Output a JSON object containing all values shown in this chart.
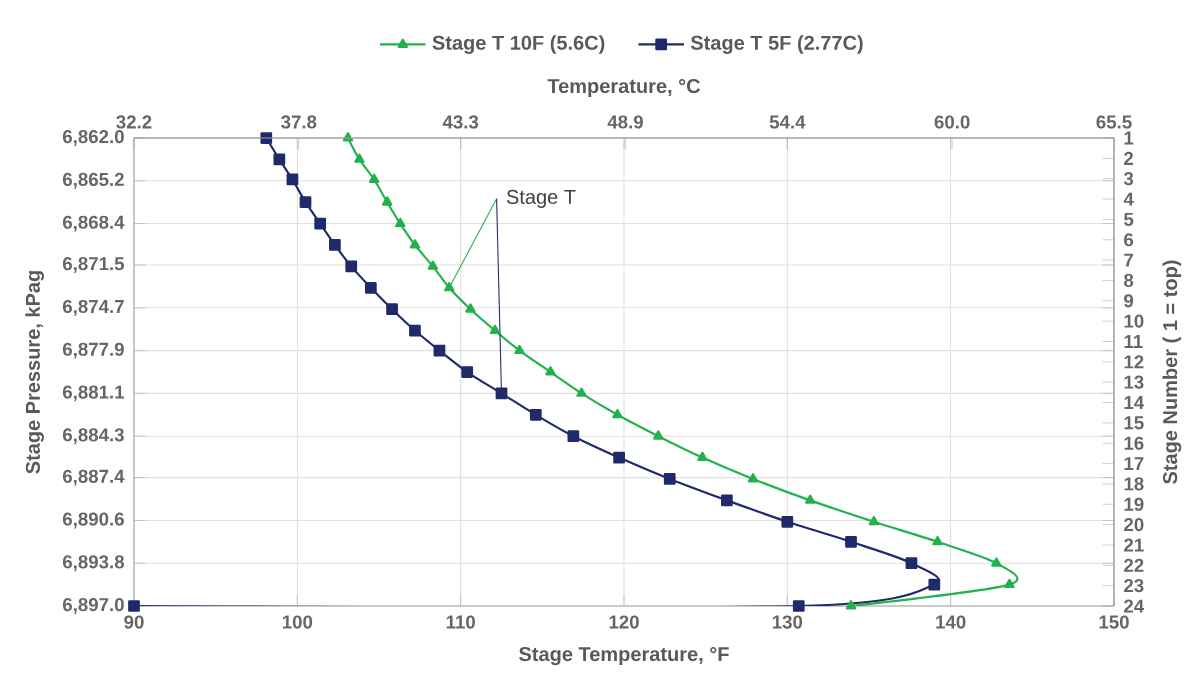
{
  "chart_data": {
    "type": "line",
    "xlabel": "Stage Temperature, °F",
    "ylabel": "Stage Pressure, kPag",
    "x2label": "Temperature, °C",
    "y2label": "Stage Number ( 1 = top)",
    "xlim": [
      90,
      150
    ],
    "xticks": [
      90,
      100,
      110,
      120,
      130,
      140,
      150
    ],
    "ylim": [
      6897.0,
      6862.0
    ],
    "yticks": [
      {
        "value": 6862.0,
        "label": "6,862.0"
      },
      {
        "value": 6865.2,
        "label": "6,865.2"
      },
      {
        "value": 6868.4,
        "label": "6,868.4"
      },
      {
        "value": 6871.5,
        "label": "6,871.5"
      },
      {
        "value": 6874.7,
        "label": "6,874.7"
      },
      {
        "value": 6877.9,
        "label": "6,877.9"
      },
      {
        "value": 6881.1,
        "label": "6,881.1"
      },
      {
        "value": 6884.3,
        "label": "6,884.3"
      },
      {
        "value": 6887.4,
        "label": "6,887.4"
      },
      {
        "value": 6890.6,
        "label": "6,890.6"
      },
      {
        "value": 6893.8,
        "label": "6,893.8"
      },
      {
        "value": 6897.0,
        "label": "6,897.0"
      }
    ],
    "x2lim": [
      32.2,
      65.5
    ],
    "x2ticks": [
      32.2,
      37.8,
      43.3,
      48.9,
      54.4,
      {
        "value": 60.0,
        "label": "60.0"
      },
      65.5
    ],
    "y2lim": [
      24,
      1
    ],
    "y2ticks": [
      1,
      2,
      3,
      4,
      5,
      6,
      7,
      8,
      9,
      10,
      11,
      12,
      13,
      14,
      15,
      16,
      17,
      18,
      19,
      20,
      21,
      22,
      23,
      24
    ],
    "grid": true,
    "legend": "top",
    "line_style": "solid",
    "annotations": [
      {
        "text": "Stage T",
        "x": 109.3,
        "y": 6873.2
      }
    ],
    "series": [
      {
        "name": "Stage T 10F (5.6C)",
        "color": "#22b14c",
        "marker": "triangle",
        "x": [
          103.1,
          103.8,
          104.7,
          105.5,
          106.3,
          107.2,
          108.3,
          109.3,
          110.6,
          112.1,
          113.6,
          115.5,
          117.4,
          119.6,
          122.1,
          124.8,
          127.9,
          131.4,
          135.3,
          139.2,
          142.8,
          143.6,
          133.9
        ],
        "values": [
          6862.0,
          6863.6,
          6865.1,
          6866.8,
          6868.4,
          6870.0,
          6871.6,
          6873.2,
          6874.8,
          6876.4,
          6877.9,
          6879.5,
          6881.1,
          6882.7,
          6884.3,
          6885.9,
          6887.5,
          6889.1,
          6890.7,
          6892.2,
          6893.8,
          6895.4,
          6897.0
        ]
      },
      {
        "name": "Stage T 5F (2.77C)",
        "color": "#1f2a6b",
        "marker": "square",
        "x": [
          98.1,
          98.9,
          99.7,
          100.5,
          101.4,
          102.3,
          103.3,
          104.5,
          105.8,
          107.2,
          108.7,
          110.4,
          112.5,
          114.6,
          116.9,
          119.7,
          122.8,
          126.3,
          130.0,
          133.9,
          137.6,
          139.0,
          130.7,
          90.0
        ],
        "values": [
          6862.0,
          6863.6,
          6865.1,
          6866.8,
          6868.4,
          6870.0,
          6871.6,
          6873.2,
          6874.8,
          6876.4,
          6877.9,
          6879.5,
          6881.1,
          6882.7,
          6884.3,
          6885.9,
          6887.5,
          6889.1,
          6890.7,
          6892.2,
          6893.8,
          6895.4,
          6897.0,
          6897.0
        ]
      }
    ]
  }
}
